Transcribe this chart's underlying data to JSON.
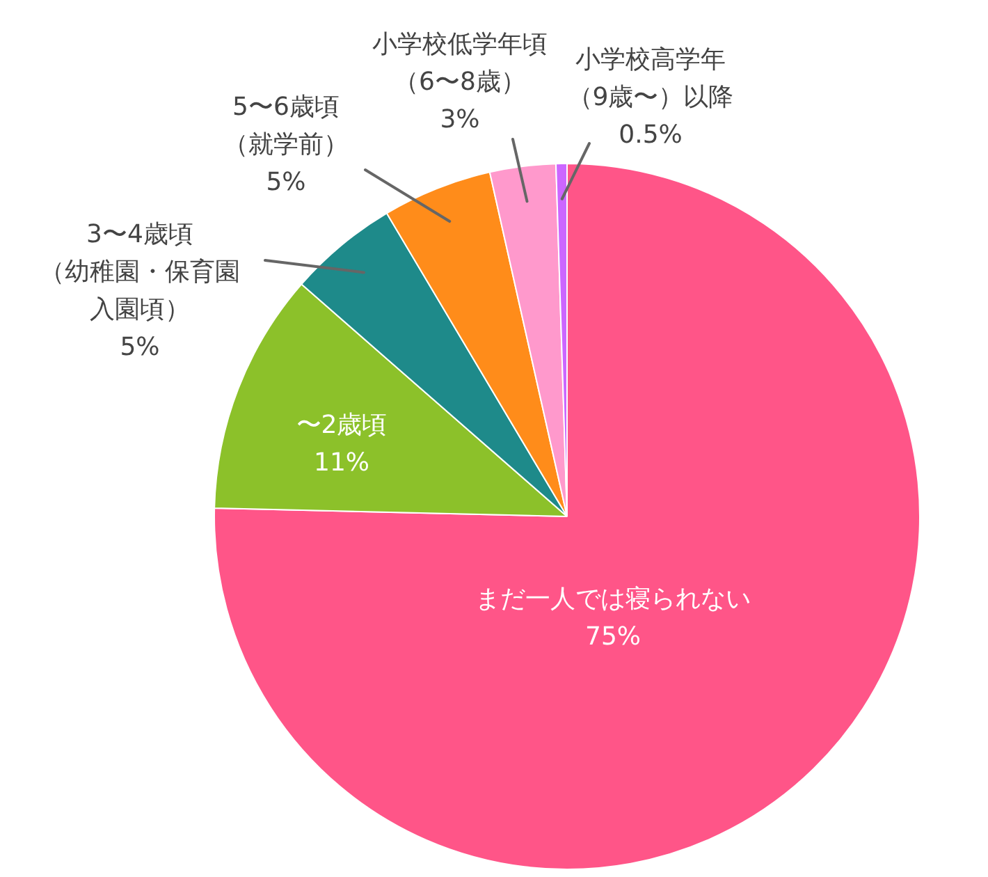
{
  "chart_data": {
    "type": "pie",
    "categories": [
      "まだ一人では寝られない",
      "〜2歳頃",
      "3〜4歳頃（幼稚園・保育園入園頃）",
      "5〜6歳頃（就学前）",
      "小学校低学年頃（6〜8歳）",
      "小学校高学年（9歳〜）以降"
    ],
    "values": [
      75,
      11,
      5,
      5,
      3,
      0.5
    ],
    "colors": [
      "#ff5588",
      "#8cc12a",
      "#1e8a8a",
      "#ff8c1a",
      "#ff99cc",
      "#cc66ff"
    ],
    "value_labels": [
      "75%",
      "11%",
      "5%",
      "5%",
      "3%",
      "0.5%"
    ]
  }
}
